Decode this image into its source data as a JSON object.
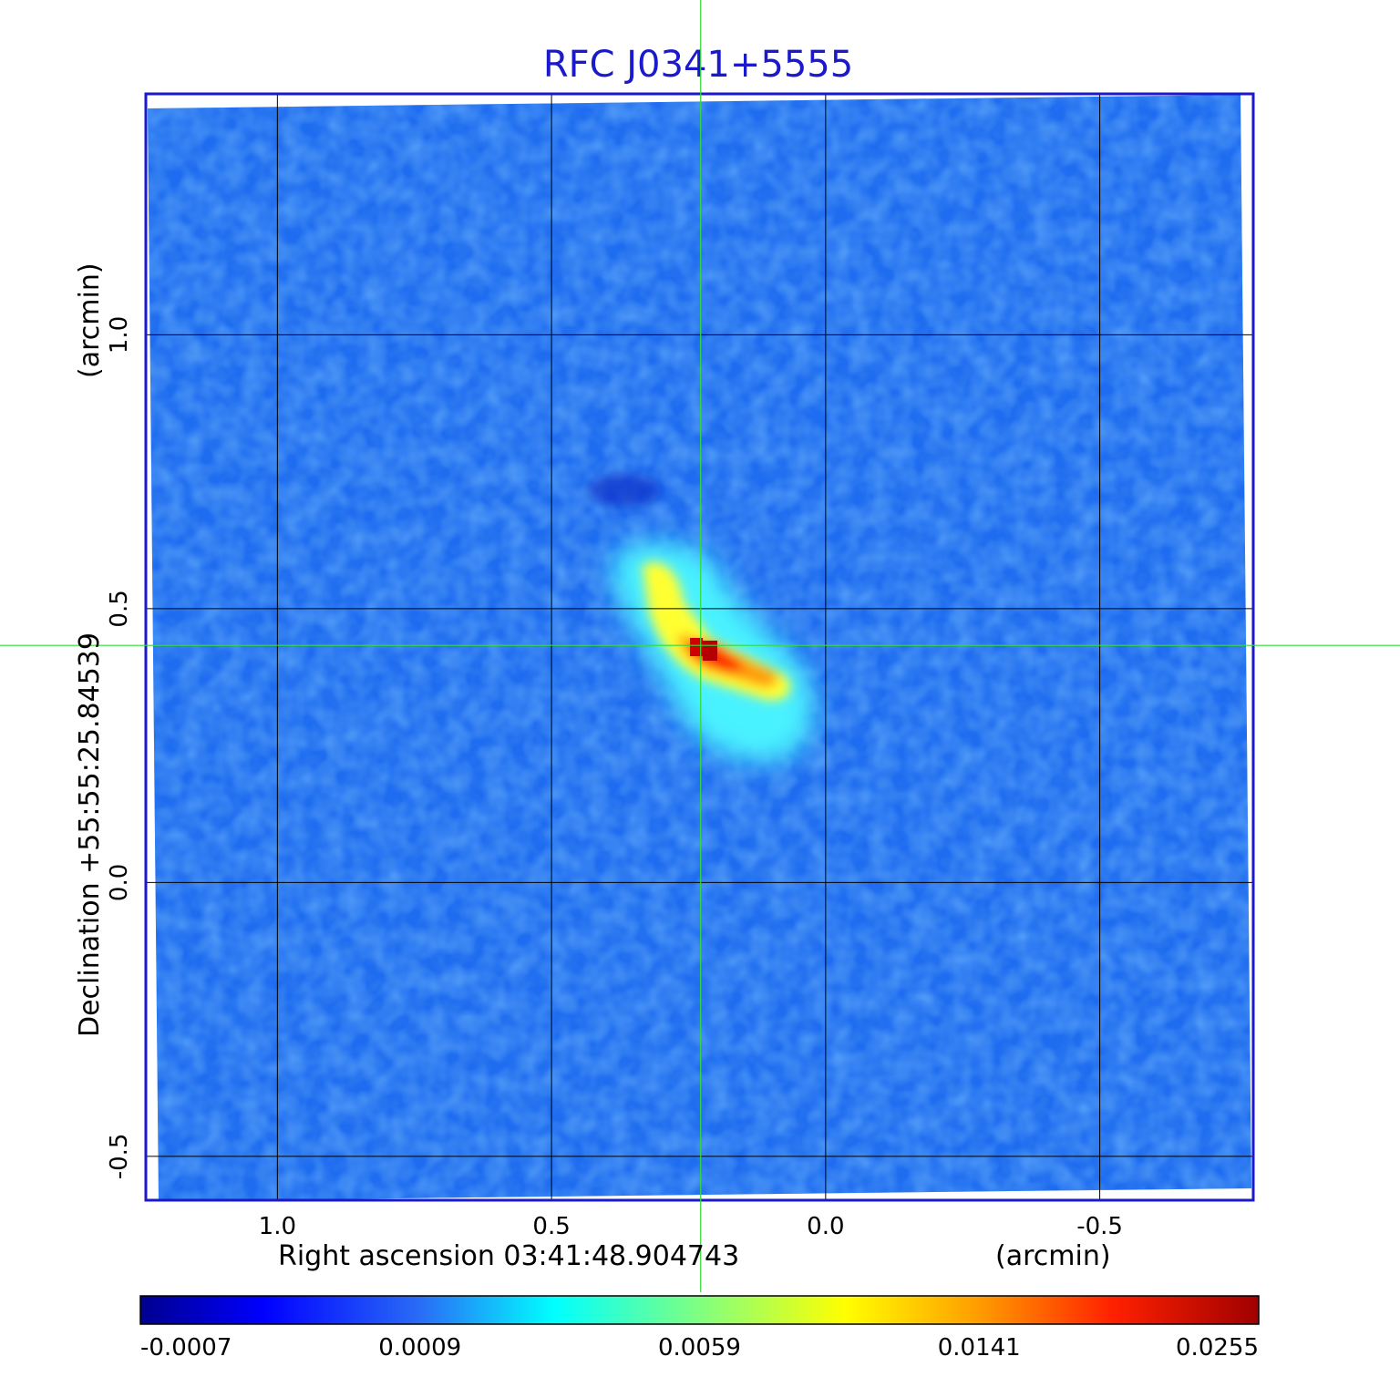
{
  "title": "RFC J0341+5555",
  "x_axis": {
    "label": "Right ascension  03:41:48.904743",
    "unit": "(arcmin)",
    "ticks": [
      "1.0",
      "0.5",
      "0.0",
      "-0.5"
    ],
    "tick_values": [
      1.0,
      0.5,
      0.0,
      -0.5
    ],
    "range": [
      1.24,
      -0.78
    ]
  },
  "y_axis": {
    "label": "Declination  +55:55:25.84539",
    "unit": "(arcmin)",
    "ticks": [
      "1.0",
      "0.5",
      "0.0",
      "-0.5"
    ],
    "tick_values": [
      1.0,
      0.5,
      0.0,
      -0.5
    ],
    "range": [
      -0.58,
      1.44
    ]
  },
  "crosshair": {
    "x_arcmin": 0.228,
    "y_arcmin": 0.433,
    "color": "#33dd33"
  },
  "grid": true,
  "colorbar": {
    "ticks": [
      "-0.0007",
      "0.0009",
      "0.0059",
      "0.0141",
      "0.0255"
    ],
    "tick_values": [
      -0.0007,
      0.0009,
      0.0059,
      0.0141,
      0.0255
    ],
    "colormap": "jet"
  },
  "colors": {
    "frame": "#1a1acc",
    "title": "#1a1acc",
    "background_map": "#1e6cf0",
    "crosshair": "#33dd33"
  }
}
